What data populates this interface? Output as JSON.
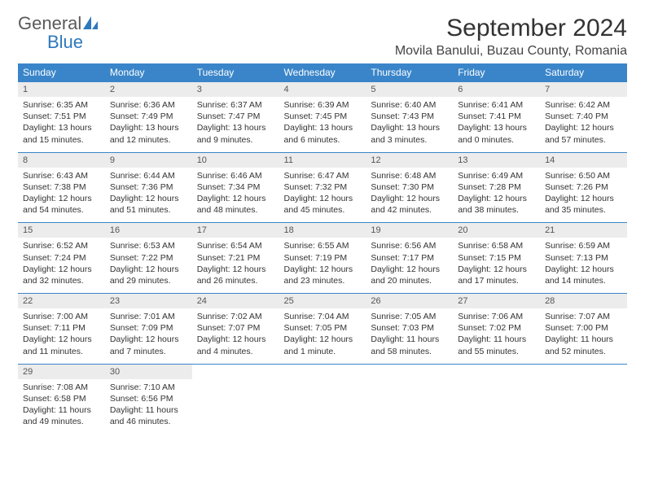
{
  "logo": {
    "general": "General",
    "blue": "Blue"
  },
  "title": "September 2024",
  "location": "Movila Banului, Buzau County, Romania",
  "colors": {
    "header_bg": "#3a85c9",
    "header_text": "#ffffff",
    "daynum_bg": "#ececec",
    "daynum_text": "#555555",
    "body_text": "#333333",
    "logo_gray": "#5a5a5a",
    "logo_blue": "#2e78bd",
    "page_bg": "#ffffff"
  },
  "day_headers": [
    "Sunday",
    "Monday",
    "Tuesday",
    "Wednesday",
    "Thursday",
    "Friday",
    "Saturday"
  ],
  "weeks": [
    [
      {
        "num": "1",
        "sunrise": "Sunrise: 6:35 AM",
        "sunset": "Sunset: 7:51 PM",
        "daylight": "Daylight: 13 hours and 15 minutes."
      },
      {
        "num": "2",
        "sunrise": "Sunrise: 6:36 AM",
        "sunset": "Sunset: 7:49 PM",
        "daylight": "Daylight: 13 hours and 12 minutes."
      },
      {
        "num": "3",
        "sunrise": "Sunrise: 6:37 AM",
        "sunset": "Sunset: 7:47 PM",
        "daylight": "Daylight: 13 hours and 9 minutes."
      },
      {
        "num": "4",
        "sunrise": "Sunrise: 6:39 AM",
        "sunset": "Sunset: 7:45 PM",
        "daylight": "Daylight: 13 hours and 6 minutes."
      },
      {
        "num": "5",
        "sunrise": "Sunrise: 6:40 AM",
        "sunset": "Sunset: 7:43 PM",
        "daylight": "Daylight: 13 hours and 3 minutes."
      },
      {
        "num": "6",
        "sunrise": "Sunrise: 6:41 AM",
        "sunset": "Sunset: 7:41 PM",
        "daylight": "Daylight: 13 hours and 0 minutes."
      },
      {
        "num": "7",
        "sunrise": "Sunrise: 6:42 AM",
        "sunset": "Sunset: 7:40 PM",
        "daylight": "Daylight: 12 hours and 57 minutes."
      }
    ],
    [
      {
        "num": "8",
        "sunrise": "Sunrise: 6:43 AM",
        "sunset": "Sunset: 7:38 PM",
        "daylight": "Daylight: 12 hours and 54 minutes."
      },
      {
        "num": "9",
        "sunrise": "Sunrise: 6:44 AM",
        "sunset": "Sunset: 7:36 PM",
        "daylight": "Daylight: 12 hours and 51 minutes."
      },
      {
        "num": "10",
        "sunrise": "Sunrise: 6:46 AM",
        "sunset": "Sunset: 7:34 PM",
        "daylight": "Daylight: 12 hours and 48 minutes."
      },
      {
        "num": "11",
        "sunrise": "Sunrise: 6:47 AM",
        "sunset": "Sunset: 7:32 PM",
        "daylight": "Daylight: 12 hours and 45 minutes."
      },
      {
        "num": "12",
        "sunrise": "Sunrise: 6:48 AM",
        "sunset": "Sunset: 7:30 PM",
        "daylight": "Daylight: 12 hours and 42 minutes."
      },
      {
        "num": "13",
        "sunrise": "Sunrise: 6:49 AM",
        "sunset": "Sunset: 7:28 PM",
        "daylight": "Daylight: 12 hours and 38 minutes."
      },
      {
        "num": "14",
        "sunrise": "Sunrise: 6:50 AM",
        "sunset": "Sunset: 7:26 PM",
        "daylight": "Daylight: 12 hours and 35 minutes."
      }
    ],
    [
      {
        "num": "15",
        "sunrise": "Sunrise: 6:52 AM",
        "sunset": "Sunset: 7:24 PM",
        "daylight": "Daylight: 12 hours and 32 minutes."
      },
      {
        "num": "16",
        "sunrise": "Sunrise: 6:53 AM",
        "sunset": "Sunset: 7:22 PM",
        "daylight": "Daylight: 12 hours and 29 minutes."
      },
      {
        "num": "17",
        "sunrise": "Sunrise: 6:54 AM",
        "sunset": "Sunset: 7:21 PM",
        "daylight": "Daylight: 12 hours and 26 minutes."
      },
      {
        "num": "18",
        "sunrise": "Sunrise: 6:55 AM",
        "sunset": "Sunset: 7:19 PM",
        "daylight": "Daylight: 12 hours and 23 minutes."
      },
      {
        "num": "19",
        "sunrise": "Sunrise: 6:56 AM",
        "sunset": "Sunset: 7:17 PM",
        "daylight": "Daylight: 12 hours and 20 minutes."
      },
      {
        "num": "20",
        "sunrise": "Sunrise: 6:58 AM",
        "sunset": "Sunset: 7:15 PM",
        "daylight": "Daylight: 12 hours and 17 minutes."
      },
      {
        "num": "21",
        "sunrise": "Sunrise: 6:59 AM",
        "sunset": "Sunset: 7:13 PM",
        "daylight": "Daylight: 12 hours and 14 minutes."
      }
    ],
    [
      {
        "num": "22",
        "sunrise": "Sunrise: 7:00 AM",
        "sunset": "Sunset: 7:11 PM",
        "daylight": "Daylight: 12 hours and 11 minutes."
      },
      {
        "num": "23",
        "sunrise": "Sunrise: 7:01 AM",
        "sunset": "Sunset: 7:09 PM",
        "daylight": "Daylight: 12 hours and 7 minutes."
      },
      {
        "num": "24",
        "sunrise": "Sunrise: 7:02 AM",
        "sunset": "Sunset: 7:07 PM",
        "daylight": "Daylight: 12 hours and 4 minutes."
      },
      {
        "num": "25",
        "sunrise": "Sunrise: 7:04 AM",
        "sunset": "Sunset: 7:05 PM",
        "daylight": "Daylight: 12 hours and 1 minute."
      },
      {
        "num": "26",
        "sunrise": "Sunrise: 7:05 AM",
        "sunset": "Sunset: 7:03 PM",
        "daylight": "Daylight: 11 hours and 58 minutes."
      },
      {
        "num": "27",
        "sunrise": "Sunrise: 7:06 AM",
        "sunset": "Sunset: 7:02 PM",
        "daylight": "Daylight: 11 hours and 55 minutes."
      },
      {
        "num": "28",
        "sunrise": "Sunrise: 7:07 AM",
        "sunset": "Sunset: 7:00 PM",
        "daylight": "Daylight: 11 hours and 52 minutes."
      }
    ],
    [
      {
        "num": "29",
        "sunrise": "Sunrise: 7:08 AM",
        "sunset": "Sunset: 6:58 PM",
        "daylight": "Daylight: 11 hours and 49 minutes."
      },
      {
        "num": "30",
        "sunrise": "Sunrise: 7:10 AM",
        "sunset": "Sunset: 6:56 PM",
        "daylight": "Daylight: 11 hours and 46 minutes."
      },
      null,
      null,
      null,
      null,
      null
    ]
  ]
}
